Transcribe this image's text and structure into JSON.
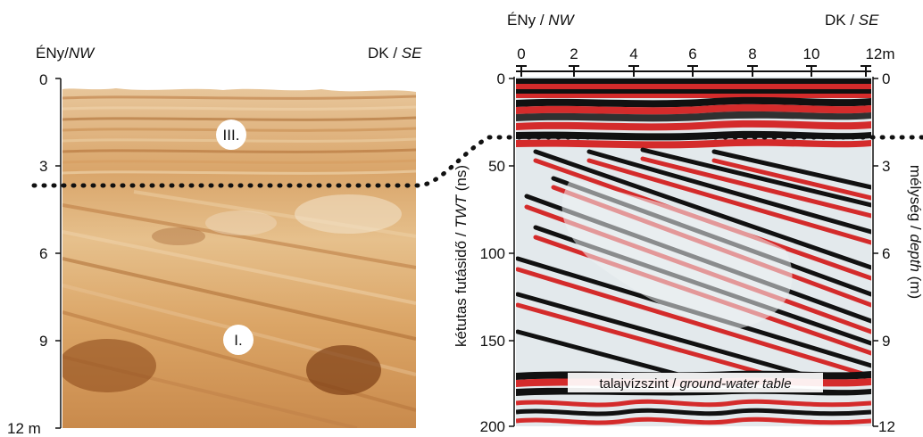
{
  "left_panel": {
    "header_left": "ÉNy/",
    "header_left_it": "NW",
    "header_right": "DK / ",
    "header_right_it": "SE",
    "depth_ticks": [
      "0",
      "3",
      "6",
      "9",
      "12 m"
    ],
    "unit_labels": [
      "III.",
      "I."
    ]
  },
  "right_panel": {
    "header_left": "ÉNy / ",
    "header_left_it": "NW",
    "header_right": "DK / ",
    "header_right_it": "SE",
    "top_ticks": [
      "0",
      "2",
      "4",
      "6",
      "8",
      "10",
      "12m"
    ],
    "twt_ticks": [
      "0",
      "50",
      "100",
      "150",
      "200"
    ],
    "depth_ticks": [
      "0",
      "3",
      "6",
      "9",
      "12"
    ],
    "left_axis_label": "kétutas futásidő / ",
    "left_axis_label_it": "TWT",
    "left_axis_unit": " (ns)",
    "right_axis_label": "mélység / ",
    "right_axis_label_it": "depth",
    "right_axis_unit": " (m)",
    "water_table_label": "talajvízszint / ",
    "water_table_label_it": "ground-water table"
  },
  "colors": {
    "sediment_light": "#e3b47a",
    "sediment_dark": "#a8642a",
    "gpr_red": "#d42b2b",
    "gpr_black": "#111111",
    "gpr_pale": "#dfe6ea"
  }
}
